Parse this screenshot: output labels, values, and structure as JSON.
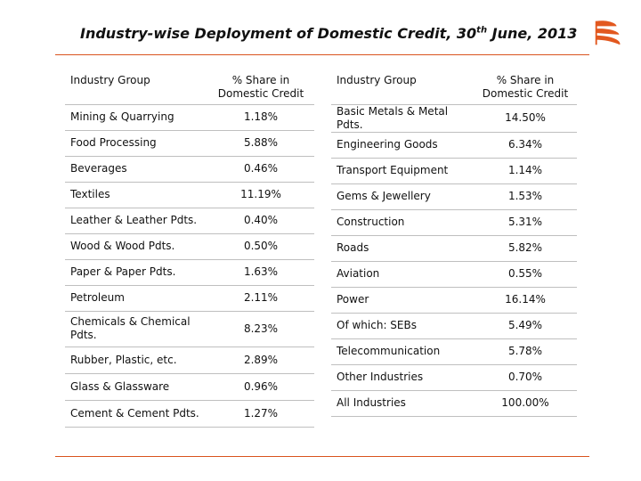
{
  "title": {
    "prefix": "Industry-wise Deployment of Domestic Credit, 30",
    "sup": "th",
    "suffix": " June, 2013"
  },
  "logo": {
    "icon": "bank-of-baroda-logo-icon",
    "color": "#e2581f"
  },
  "accent_color": "#d9531e",
  "left_table": {
    "headers": [
      "Industry Group",
      "% Share in Domestic Credit"
    ],
    "rows": [
      [
        "Mining & Quarrying",
        "1.18%"
      ],
      [
        "Food Processing",
        "5.88%"
      ],
      [
        "Beverages",
        "0.46%"
      ],
      [
        "Textiles",
        "11.19%"
      ],
      [
        "Leather & Leather Pdts.",
        "0.40%"
      ],
      [
        "Wood & Wood Pdts.",
        "0.50%"
      ],
      [
        "Paper & Paper Pdts.",
        "1.63%"
      ],
      [
        "Petroleum",
        "2.11%"
      ],
      [
        "Chemicals & Chemical Pdts.",
        "8.23%"
      ],
      [
        "Rubber, Plastic, etc.",
        "2.89%"
      ],
      [
        "Glass & Glassware",
        "0.96%"
      ],
      [
        "Cement & Cement Pdts.",
        "1.27%"
      ]
    ]
  },
  "right_table": {
    "headers": [
      "Industry Group",
      "% Share in Domestic Credit"
    ],
    "rows": [
      [
        "Basic Metals & Metal Pdts.",
        "14.50%"
      ],
      [
        "Engineering Goods",
        "6.34%"
      ],
      [
        "Transport Equipment",
        "1.14%"
      ],
      [
        "Gems & Jewellery",
        "1.53%"
      ],
      [
        "Construction",
        "5.31%"
      ],
      [
        "Roads",
        "5.82%"
      ],
      [
        "Aviation",
        "0.55%"
      ],
      [
        "Power",
        "16.14%"
      ],
      [
        "Of which: SEBs",
        "5.49%"
      ],
      [
        "Telecommunication",
        "5.78%"
      ],
      [
        "Other Industries",
        "0.70%"
      ],
      [
        "All Industries",
        "100.00%"
      ]
    ]
  }
}
